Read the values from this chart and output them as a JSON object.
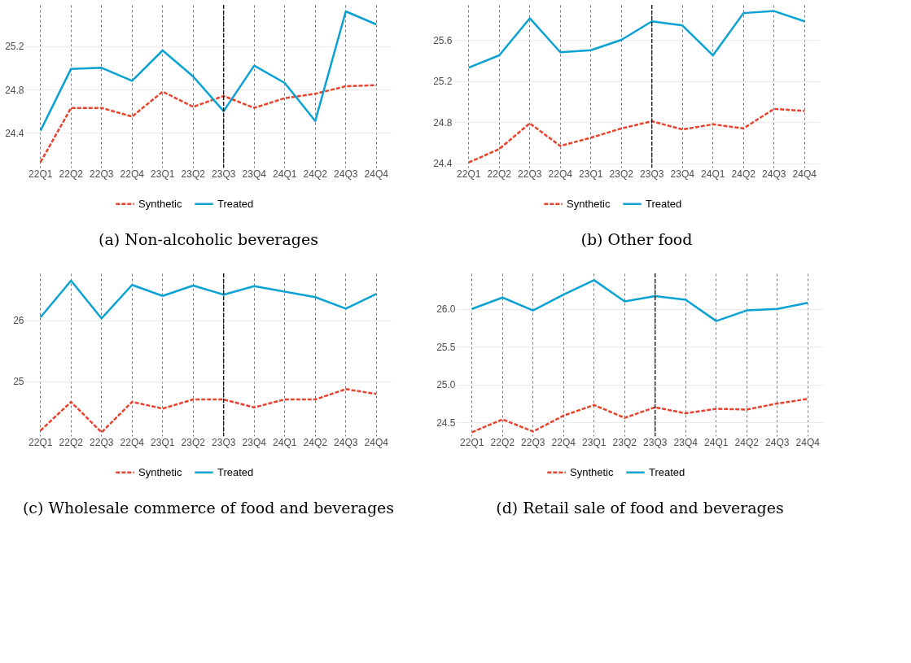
{
  "chart_data": [
    {
      "type": "line",
      "title": "(a) Non-alcoholic beverages",
      "categories": [
        "22Q1",
        "22Q2",
        "22Q3",
        "22Q4",
        "23Q1",
        "23Q2",
        "23Q3",
        "23Q4",
        "24Q1",
        "24Q2",
        "24Q3",
        "24Q4"
      ],
      "ylim": [
        24.08,
        25.58
      ],
      "yticks": [
        24.4,
        24.8,
        25.2
      ],
      "grid": true,
      "legend": "bottom",
      "marker": "none",
      "series": [
        {
          "name": "Synthetic",
          "color": "#e8432e",
          "line_style": "dashed",
          "values": [
            24.13,
            24.63,
            24.63,
            24.55,
            24.78,
            24.64,
            24.74,
            24.63,
            24.72,
            24.76,
            24.83,
            24.84
          ]
        },
        {
          "name": "Treated",
          "color": "#0aa1d3",
          "line_style": "solid",
          "values": [
            24.42,
            24.99,
            25.0,
            24.88,
            25.16,
            24.92,
            24.6,
            25.02,
            24.86,
            24.51,
            25.52,
            25.4
          ]
        }
      ],
      "ref_lines": [
        {
          "axis": "x",
          "value": "23Q3",
          "color": "#000000",
          "line_style": "dashed"
        }
      ]
    },
    {
      "type": "line",
      "title": "(b) Other food",
      "categories": [
        "22Q1",
        "22Q2",
        "22Q3",
        "22Q4",
        "23Q1",
        "23Q2",
        "23Q3",
        "23Q4",
        "24Q1",
        "24Q2",
        "24Q3",
        "24Q4"
      ],
      "ylim": [
        24.36,
        25.94
      ],
      "yticks": [
        24.4,
        24.8,
        25.2,
        25.6
      ],
      "grid": true,
      "legend": "bottom",
      "marker": "none",
      "series": [
        {
          "name": "Synthetic",
          "color": "#e8432e",
          "line_style": "dashed",
          "values": [
            24.41,
            24.54,
            24.79,
            24.57,
            24.65,
            24.74,
            24.81,
            24.73,
            24.78,
            24.74,
            24.93,
            24.91
          ]
        },
        {
          "name": "Treated",
          "color": "#0aa1d3",
          "line_style": "solid",
          "values": [
            25.33,
            25.45,
            25.81,
            25.48,
            25.5,
            25.6,
            25.78,
            25.74,
            25.45,
            25.86,
            25.88,
            25.78
          ]
        }
      ],
      "ref_lines": [
        {
          "axis": "x",
          "value": "23Q3",
          "color": "#000000",
          "line_style": "dashed"
        }
      ]
    },
    {
      "type": "line",
      "title": "(c) Wholesale commerce of food and beverages",
      "categories": [
        "22Q1",
        "22Q2",
        "22Q3",
        "22Q4",
        "23Q1",
        "23Q2",
        "23Q3",
        "23Q4",
        "24Q1",
        "24Q2",
        "24Q3",
        "24Q4"
      ],
      "ylim": [
        24.1,
        26.77
      ],
      "yticks": [
        25,
        26
      ],
      "grid": true,
      "legend": "bottom",
      "marker": "none",
      "series": [
        {
          "name": "Synthetic",
          "color": "#e8432e",
          "line_style": "dashed",
          "values": [
            24.19,
            24.66,
            24.16,
            24.66,
            24.55,
            24.7,
            24.7,
            24.57,
            24.7,
            24.7,
            24.87,
            24.79
          ]
        },
        {
          "name": "Treated",
          "color": "#0aa1d3",
          "line_style": "solid",
          "values": [
            26.05,
            26.65,
            26.03,
            26.58,
            26.4,
            26.57,
            26.42,
            26.56,
            26.47,
            26.38,
            26.19,
            26.43
          ]
        }
      ],
      "ref_lines": [
        {
          "axis": "x",
          "value": "23Q3",
          "color": "#000000",
          "line_style": "dashed"
        }
      ]
    },
    {
      "type": "line",
      "title": "(d) Retail sale of food and beverages",
      "categories": [
        "22Q1",
        "22Q2",
        "22Q3",
        "22Q4",
        "23Q1",
        "23Q2",
        "23Q3",
        "23Q4",
        "24Q1",
        "24Q2",
        "24Q3",
        "24Q4"
      ],
      "ylim": [
        24.32,
        26.47
      ],
      "yticks": [
        {
          "value": 24.5,
          "label": "24.5"
        },
        {
          "value": 25,
          "label": "25.0"
        },
        {
          "value": 25.5,
          "label": "25.5"
        },
        {
          "value": 26,
          "label": "26.0"
        }
      ],
      "grid": true,
      "legend": "bottom",
      "marker": "none",
      "series": [
        {
          "name": "Synthetic",
          "color": "#e8432e",
          "line_style": "dashed",
          "values": [
            24.37,
            24.54,
            24.38,
            24.59,
            24.73,
            24.56,
            24.7,
            24.62,
            24.68,
            24.67,
            24.75,
            24.81
          ]
        },
        {
          "name": "Treated",
          "color": "#0aa1d3",
          "line_style": "solid",
          "values": [
            26.0,
            26.15,
            25.98,
            26.19,
            26.38,
            26.1,
            26.17,
            26.12,
            25.84,
            25.98,
            26.0,
            26.08
          ]
        }
      ],
      "ref_lines": [
        {
          "axis": "x",
          "value": "23Q3",
          "color": "#000000",
          "line_style": "dashed"
        }
      ]
    }
  ]
}
